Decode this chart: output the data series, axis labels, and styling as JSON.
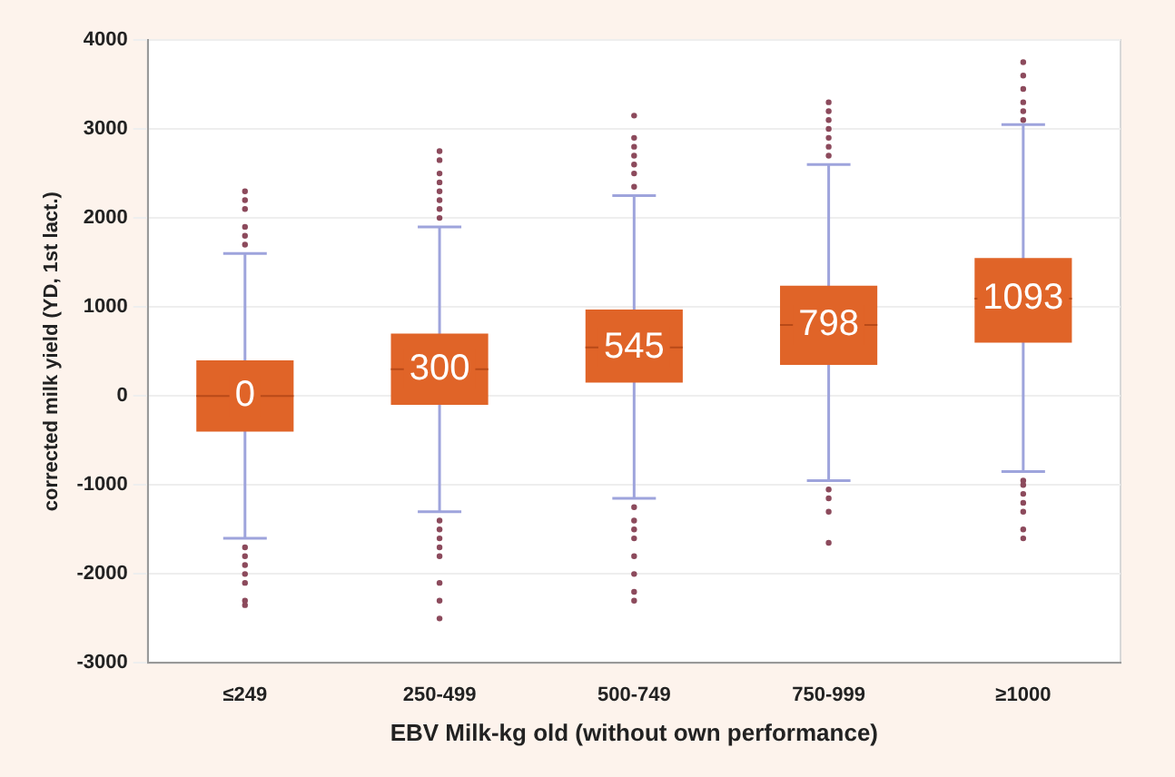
{
  "chart_data": {
    "type": "box",
    "xlabel": "EBV Milk-kg old (without own performance)",
    "ylabel": "corrected milk yield (YD, 1st lact.)",
    "categories": [
      "≤249",
      "250-499",
      "500-749",
      "750-999",
      "≥1000"
    ],
    "boxes": [
      {
        "low": -1600,
        "q1": -400,
        "median": 0,
        "q3": 400,
        "high": 1600,
        "outliers": [
          1700,
          1800,
          1900,
          2100,
          2200,
          2300,
          -1700,
          -1800,
          -1900,
          -2000,
          -2100,
          -2300,
          -2350
        ]
      },
      {
        "low": -1300,
        "q1": -100,
        "median": 300,
        "q3": 700,
        "high": 1900,
        "outliers": [
          2000,
          2100,
          2200,
          2300,
          2400,
          2500,
          2650,
          2750,
          -1400,
          -1500,
          -1600,
          -1700,
          -1800,
          -2100,
          -2300,
          -2500
        ]
      },
      {
        "low": -1150,
        "q1": 150,
        "median": 545,
        "q3": 970,
        "high": 2250,
        "outliers": [
          2350,
          2500,
          2600,
          2700,
          2800,
          2900,
          3150,
          -1250,
          -1400,
          -1500,
          -1600,
          -1800,
          -2000,
          -2200,
          -2300
        ]
      },
      {
        "low": -950,
        "q1": 350,
        "median": 798,
        "q3": 1240,
        "high": 2600,
        "outliers": [
          2700,
          2800,
          2900,
          3000,
          3100,
          3200,
          3300,
          -1050,
          -1150,
          -1300,
          -1650
        ]
      },
      {
        "low": -850,
        "q1": 600,
        "median": 1093,
        "q3": 1550,
        "high": 3050,
        "outliers": [
          3100,
          3200,
          3300,
          3450,
          3600,
          3750,
          -950,
          -1000,
          -1100,
          -1200,
          -1300,
          -1500,
          -1600
        ]
      }
    ],
    "color": "#e06428",
    "value_labels": [
      "0",
      "300",
      "545",
      "798",
      "1093"
    ],
    "ylim": [
      -3000,
      4000
    ],
    "yticks": [
      -3000,
      -2000,
      -1000,
      0,
      1000,
      2000,
      3000,
      4000
    ],
    "grid": "y"
  }
}
